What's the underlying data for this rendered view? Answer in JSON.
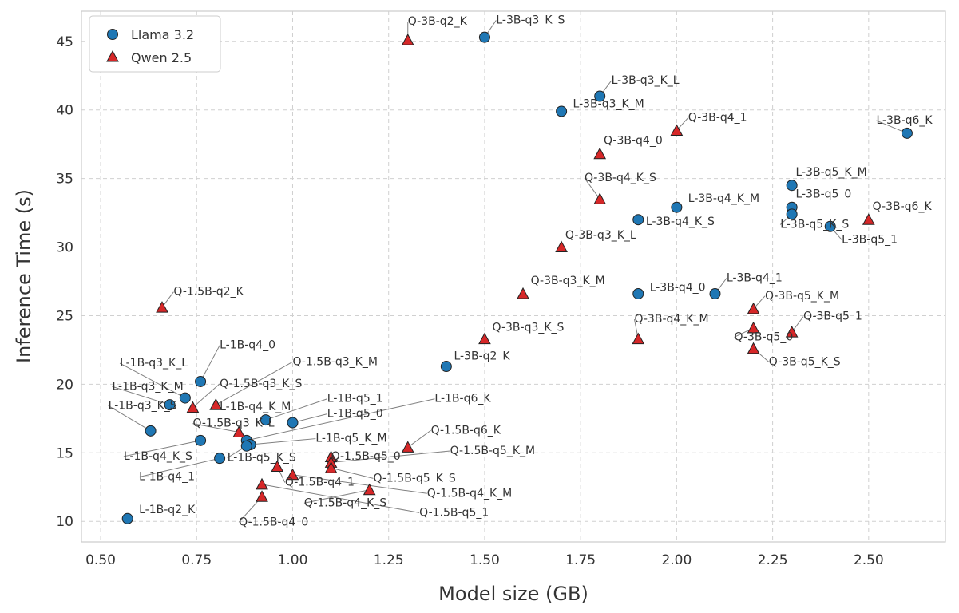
{
  "chart_data": {
    "type": "scatter",
    "title": "",
    "xlabel": "Model size (GB)",
    "ylabel": "Inference Time (s)",
    "xlim": [
      0.45,
      2.7
    ],
    "ylim": [
      8.5,
      47.2
    ],
    "xticks": [
      0.5,
      0.75,
      1.0,
      1.25,
      1.5,
      1.75,
      2.0,
      2.25,
      2.5
    ],
    "xtick_labels": [
      "0.50",
      "0.75",
      "1.00",
      "1.25",
      "1.50",
      "1.75",
      "2.00",
      "2.25",
      "2.50"
    ],
    "yticks": [
      10,
      15,
      20,
      25,
      30,
      35,
      40,
      45
    ],
    "ytick_labels": [
      "10",
      "15",
      "20",
      "25",
      "30",
      "35",
      "40",
      "45"
    ],
    "grid": true,
    "legend_position": "top-left",
    "series": [
      {
        "name": "Llama 3.2",
        "marker": "circle",
        "color": "#1f77b4",
        "points": [
          {
            "label": "L-3B-q3_K_S",
            "x": 1.5,
            "y": 45.3,
            "lx": 1.53,
            "ly": 46.3
          },
          {
            "label": "L-3B-q3_K_L",
            "x": 1.8,
            "y": 41.0,
            "lx": 1.83,
            "ly": 41.9
          },
          {
            "label": "L-3B-q3_K_M",
            "x": 1.7,
            "y": 39.9,
            "lx": 1.73,
            "ly": 40.2
          },
          {
            "label": "L-3B-q6_K",
            "x": 2.6,
            "y": 38.3,
            "lx": 2.52,
            "ly": 39.0
          },
          {
            "label": "L-3B-q5_K_M",
            "x": 2.3,
            "y": 34.5,
            "lx": 2.31,
            "ly": 35.2
          },
          {
            "label": "L-3B-q5_0",
            "x": 2.3,
            "y": 32.9,
            "lx": 2.31,
            "ly": 33.6
          },
          {
            "label": "L-3B-q4_K_M",
            "x": 2.0,
            "y": 32.9,
            "lx": 2.03,
            "ly": 33.3
          },
          {
            "label": "L-3B-q4_K_S",
            "x": 1.9,
            "y": 32.0,
            "lx": 1.92,
            "ly": 31.6
          },
          {
            "label": "L-3B-q5_K_S",
            "x": 2.3,
            "y": 32.4,
            "lx": 2.27,
            "ly": 31.4
          },
          {
            "label": "L-3B-q5_1",
            "x": 2.4,
            "y": 31.5,
            "lx": 2.43,
            "ly": 30.3
          },
          {
            "label": "L-3B-q4_1",
            "x": 2.1,
            "y": 26.6,
            "lx": 2.13,
            "ly": 27.5
          },
          {
            "label": "L-3B-q4_0",
            "x": 1.9,
            "y": 26.6,
            "lx": 1.93,
            "ly": 26.8
          },
          {
            "label": "L-3B-q2_K",
            "x": 1.4,
            "y": 21.3,
            "lx": 1.42,
            "ly": 21.8
          },
          {
            "label": "L-1B-q4_0",
            "x": 0.76,
            "y": 20.2,
            "lx": 0.81,
            "ly": 22.6
          },
          {
            "label": "L-1B-q3_K_L",
            "x": 0.72,
            "y": 19.0,
            "lx": 0.55,
            "ly": 21.3
          },
          {
            "label": "L-1B-q3_K_M",
            "x": 0.68,
            "y": 18.5,
            "lx": 0.53,
            "ly": 19.6
          },
          {
            "label": "L-1B-q3_K_S",
            "x": 0.63,
            "y": 16.6,
            "lx": 0.52,
            "ly": 18.2
          },
          {
            "label": "L-1B-q5_1",
            "x": 0.93,
            "y": 17.4,
            "lx": 1.09,
            "ly": 18.7
          },
          {
            "label": "L-1B-q5_0",
            "x": 1.0,
            "y": 17.2,
            "lx": 1.09,
            "ly": 17.6
          },
          {
            "label": "L-1B-q6_K",
            "x": 0.88,
            "y": 15.9,
            "lx": 1.37,
            "ly": 18.7
          },
          {
            "label": "L-1B-q4_K_S",
            "x": 0.76,
            "y": 15.9,
            "lx": 0.56,
            "ly": 14.5
          },
          {
            "label": "L-1B-q5_K_M",
            "x": 0.89,
            "y": 15.6,
            "lx": 1.06,
            "ly": 15.8
          },
          {
            "label": "L-1B-q5_K_S",
            "x": 0.88,
            "y": 15.5,
            "lx": 0.83,
            "ly": 14.4
          },
          {
            "label": "L-1B-q4_1",
            "x": 0.81,
            "y": 14.6,
            "lx": 0.6,
            "ly": 13.0
          },
          {
            "label": "L-1B-q2_K",
            "x": 0.57,
            "y": 10.2,
            "lx": 0.6,
            "ly": 10.6
          }
        ]
      },
      {
        "name": "Qwen 2.5",
        "marker": "triangle",
        "color": "#d62728",
        "points": [
          {
            "label": "Q-3B-q2_K",
            "x": 1.3,
            "y": 45.1,
            "lx": 1.3,
            "ly": 46.2
          },
          {
            "label": "Q-3B-q4_1",
            "x": 2.0,
            "y": 38.5,
            "lx": 2.03,
            "ly": 39.2
          },
          {
            "label": "Q-3B-q4_0",
            "x": 1.8,
            "y": 36.8,
            "lx": 1.81,
            "ly": 37.5
          },
          {
            "label": "Q-3B-q4_K_S",
            "x": 1.8,
            "y": 33.5,
            "lx": 1.76,
            "ly": 34.8
          },
          {
            "label": "Q-3B-q6_K",
            "x": 2.5,
            "y": 32.0,
            "lx": 2.51,
            "ly": 32.7
          },
          {
            "label": "Q-3B-q3_K_L",
            "x": 1.7,
            "y": 30.0,
            "lx": 1.71,
            "ly": 30.6
          },
          {
            "label": "Q-3B-q3_K_M",
            "x": 1.6,
            "y": 26.6,
            "lx": 1.62,
            "ly": 27.3
          },
          {
            "label": "Q-3B-q5_K_M",
            "x": 2.2,
            "y": 25.5,
            "lx": 2.23,
            "ly": 26.2
          },
          {
            "label": "Q-3B-q5_1",
            "x": 2.3,
            "y": 23.8,
            "lx": 2.33,
            "ly": 24.7
          },
          {
            "label": "Q-3B-q5_0",
            "x": 2.2,
            "y": 24.1,
            "lx": 2.15,
            "ly": 23.2
          },
          {
            "label": "Q-3B-q4_K_M",
            "x": 1.9,
            "y": 23.3,
            "lx": 1.89,
            "ly": 24.5
          },
          {
            "label": "Q-3B-q3_K_S",
            "x": 1.5,
            "y": 23.3,
            "lx": 1.52,
            "ly": 23.9
          },
          {
            "label": "Q-3B-q5_K_S",
            "x": 2.2,
            "y": 22.6,
            "lx": 2.24,
            "ly": 21.4
          },
          {
            "label": "Q-1.5B-q2_K",
            "x": 0.66,
            "y": 25.6,
            "lx": 0.69,
            "ly": 26.5
          },
          {
            "label": "Q-1.5B-q3_K_M",
            "x": 0.8,
            "y": 18.5,
            "lx": 1.0,
            "ly": 21.4
          },
          {
            "label": "Q-1.5B-q3_K_S",
            "x": 0.74,
            "y": 18.3,
            "lx": 0.81,
            "ly": 19.8
          },
          {
            "label": "L-1B-q4_K_M",
            "x": 0.8,
            "y": 18.5,
            "lx": 0.81,
            "ly": 18.1
          },
          {
            "label": "Q-1.5B-q3_K_L",
            "x": 0.86,
            "y": 16.5,
            "lx": 0.74,
            "ly": 16.9
          },
          {
            "label": "Q-1.5B-q6_K",
            "x": 1.3,
            "y": 15.4,
            "lx": 1.36,
            "ly": 16.4
          },
          {
            "label": "Q-1.5B-q5_0",
            "x": 1.1,
            "y": 14.7,
            "lx": 1.1,
            "ly": 14.5
          },
          {
            "label": "Q-1.5B-q5_K_M",
            "x": 1.1,
            "y": 14.3,
            "lx": 1.41,
            "ly": 14.9
          },
          {
            "label": "Q-1.5B-q5_K_S",
            "x": 1.1,
            "y": 13.9,
            "lx": 1.21,
            "ly": 12.9
          },
          {
            "label": "Q-1.5B-q4_1",
            "x": 0.96,
            "y": 14.0,
            "lx": 0.98,
            "ly": 12.6
          },
          {
            "label": "Q-1.5B-q4_K_M",
            "x": 1.0,
            "y": 13.4,
            "lx": 1.35,
            "ly": 11.8
          },
          {
            "label": "Q-1.5B-q4_K_S",
            "x": 1.2,
            "y": 12.3,
            "lx": 1.03,
            "ly": 11.1
          },
          {
            "label": "Q-1.5B-q5_1",
            "x": 0.92,
            "y": 12.7,
            "lx": 1.33,
            "ly": 10.4
          },
          {
            "label": "Q-1.5B-q4_0",
            "x": 0.92,
            "y": 11.8,
            "lx": 0.86,
            "ly": 9.7
          }
        ]
      }
    ]
  }
}
